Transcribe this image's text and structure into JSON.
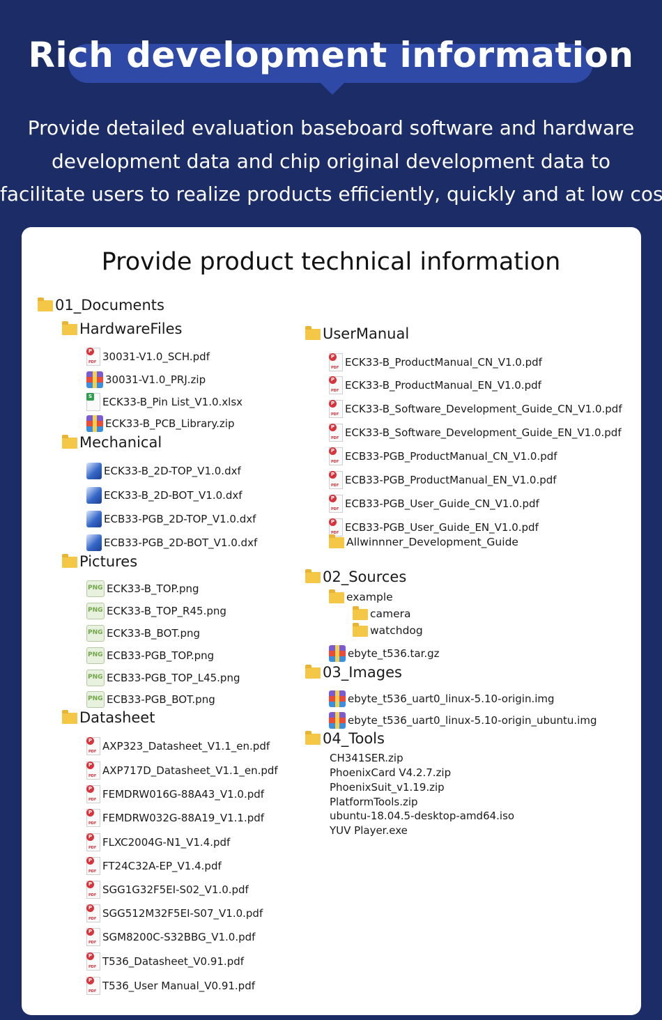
{
  "header": {
    "title": "Rich development information",
    "subtitle_lines": [
      "Provide detailed evaluation baseboard software and hardware",
      "development data and chip original development data to",
      "facilitate users to realize products efficiently, quickly and at low cost"
    ]
  },
  "card": {
    "title": "Provide product technical information"
  },
  "tree": {
    "documents": {
      "label": "01_Documents",
      "hardware_files": {
        "label": "HardwareFiles",
        "files": [
          "30031-V1.0_SCH.pdf",
          "30031-V1.0_PRJ.zip",
          "ECK33-B_Pin List_V1.0.xlsx",
          "ECK33-B_PCB_Library.zip"
        ]
      },
      "mechanical": {
        "label": "Mechanical",
        "files": [
          "ECK33-B_2D-TOP_V1.0.dxf",
          "ECK33-B_2D-BOT_V1.0.dxf",
          "ECB33-PGB_2D-TOP_V1.0.dxf",
          "ECB33-PGB_2D-BOT_V1.0.dxf"
        ]
      },
      "pictures": {
        "label": "Pictures",
        "files": [
          "ECK33-B_TOP.png",
          "ECK33-B_TOP_R45.png",
          "ECK33-B_BOT.png",
          "ECB33-PGB_TOP.png",
          "ECB33-PGB_TOP_L45.png",
          "ECB33-PGB_BOT.png"
        ]
      },
      "datasheet": {
        "label": "Datasheet",
        "files": [
          "AXP323_Datasheet_V1.1_en.pdf",
          "AXP717D_Datasheet_V1.1_en.pdf",
          "FEMDRW016G-88A43_V1.0.pdf",
          "FEMDRW032G-88A19_V1.1.pdf",
          "FLXC2004G-N1_V1.4.pdf",
          "FT24C32A-EP_V1.4.pdf",
          "SGG1G32F5EI-S02_V1.0.pdf",
          "SGG512M32F5EI-S07_V1.0.pdf",
          "SGM8200C-S32BBG_V1.0.pdf",
          "T536_Datasheet_V0.91.pdf",
          "T536_User Manual_V0.91.pdf"
        ]
      },
      "user_manual": {
        "label": "UserManual",
        "files": [
          "ECK33-B_ProductManual_CN_V1.0.pdf",
          "ECK33-B_ProductManual_EN_V1.0.pdf",
          "ECK33-B_Software_Development_Guide_CN_V1.0.pdf",
          "ECK33-B_Software_Development_Guide_EN_V1.0.pdf",
          "ECB33-PGB_ProductManual_CN_V1.0.pdf",
          "ECB33-PGB_ProductManual_EN_V1.0.pdf",
          "ECB33-PGB_User_Guide_CN_V1.0.pdf",
          "ECB33-PGB_User_Guide_EN_V1.0.pdf"
        ],
        "subfolder": "Allwinnner_Development_Guide"
      }
    },
    "sources": {
      "label": "02_Sources",
      "example": "example",
      "example_children": [
        "camera",
        "watchdog"
      ],
      "file": "ebyte_t536.tar.gz"
    },
    "images": {
      "label": "03_Images",
      "files": [
        "ebyte_t536_uart0_linux-5.10-origin.img",
        "ebyte_t536_uart0_linux-5.10-origin_ubuntu.img"
      ]
    },
    "tools": {
      "label": "04_Tools",
      "files": [
        "CH341SER.zip",
        "PhoenixCard V4.2.7.zip",
        "PhoenixSuit_v1.19.zip",
        "PlatformTools.zip",
        "ubuntu-18.04.5-desktop-amd64.iso",
        "YUV Player.exe"
      ]
    }
  }
}
